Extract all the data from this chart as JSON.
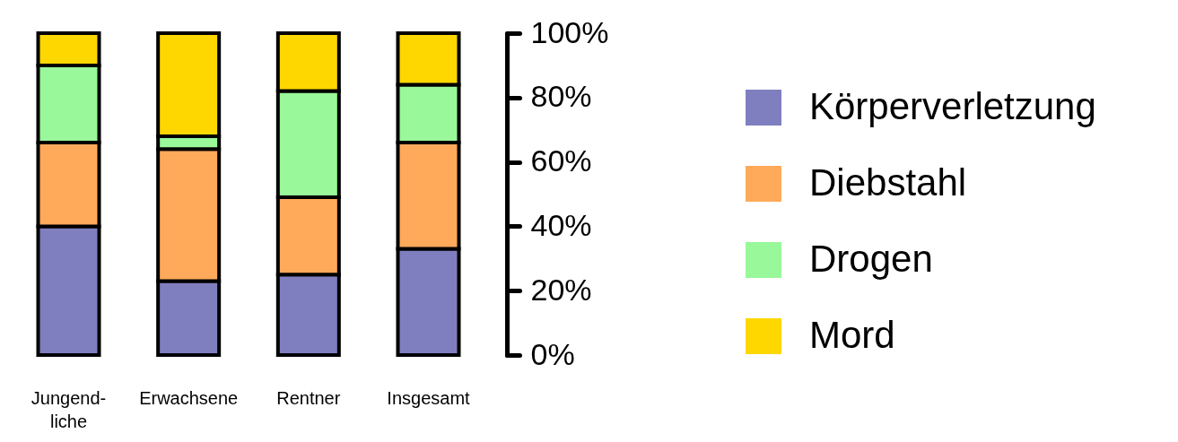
{
  "chart_data": {
    "type": "bar",
    "stacked": true,
    "categories": [
      "Jungend-\nliche",
      "Erwachsene",
      "Rentner",
      "Insgesamt"
    ],
    "series": [
      {
        "name": "Körperverletzung",
        "color": "#7f7fbf",
        "values": [
          40,
          23,
          25,
          33
        ]
      },
      {
        "name": "Diebstahl",
        "color": "#ffaa5a",
        "values": [
          26,
          41,
          24,
          33
        ]
      },
      {
        "name": "Drogen",
        "color": "#99f899",
        "values": [
          24,
          4,
          33,
          18
        ]
      },
      {
        "name": "Mord",
        "color": "#ffd700",
        "values": [
          10,
          32,
          18,
          16
        ]
      }
    ],
    "ylim": [
      0,
      100
    ],
    "yticks": [
      {
        "value": 0,
        "label": "0%"
      },
      {
        "value": 20,
        "label": "20%"
      },
      {
        "value": 40,
        "label": "40%"
      },
      {
        "value": 60,
        "label": "60%"
      },
      {
        "value": 80,
        "label": "80%"
      },
      {
        "value": 100,
        "label": "100%"
      }
    ],
    "grid": false,
    "legend": "right"
  }
}
